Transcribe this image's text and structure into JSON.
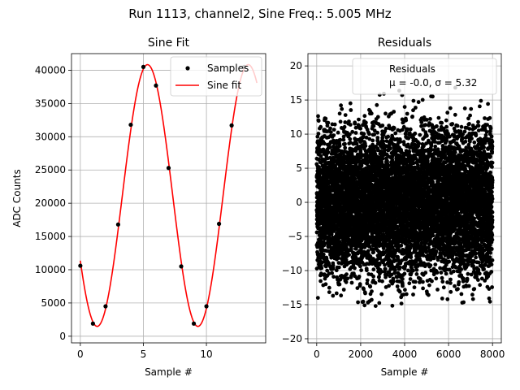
{
  "figure": {
    "title": "Run 1113, channel2, Sine Freq.: 5.005 MHz"
  },
  "chart_data": [
    {
      "type": "line",
      "title": "Sine Fit",
      "xlabel": "Sample #",
      "ylabel": "ADC Counts",
      "xlim": [
        -0.7,
        14.7
      ],
      "ylim": [
        -1000,
        42500
      ],
      "xticks": [
        0,
        5,
        10
      ],
      "yticks": [
        0,
        5000,
        10000,
        15000,
        20000,
        25000,
        30000,
        35000,
        40000
      ],
      "grid": true,
      "legend_position": "top-right",
      "series": [
        {
          "name": "Samples",
          "kind": "scatter",
          "color": "#000000",
          "x": [
            0,
            1,
            2,
            3,
            4,
            5,
            6,
            7,
            8,
            9,
            10,
            11,
            12,
            13
          ],
          "y": [
            10600,
            1900,
            4500,
            16800,
            31800,
            40500,
            37700,
            25300,
            10500,
            1900,
            4500,
            16900,
            31700,
            40500
          ]
        },
        {
          "name": "Sine fit",
          "kind": "line",
          "color": "#ff0000",
          "x_range": [
            0,
            14
          ],
          "model": {
            "offset": 21160,
            "amplitude": 19680,
            "period": 7.99,
            "peak_at": 5.33
          }
        }
      ]
    },
    {
      "type": "scatter",
      "title": "Residuals",
      "xlabel": "Sample #",
      "ylabel": "",
      "xlim": [
        -400,
        8400
      ],
      "ylim": [
        -20.6,
        21.8
      ],
      "xticks": [
        0,
        2000,
        4000,
        6000,
        8000
      ],
      "yticks": [
        -20,
        -15,
        -10,
        -5,
        0,
        5,
        10,
        15,
        20
      ],
      "grid": true,
      "legend_position": "top-right",
      "legend_title": "Residuals",
      "legend_stat": "μ = -0.0, σ = 5.32",
      "series": [
        {
          "name": "Residuals",
          "color": "#000000",
          "n_points": 8000,
          "mean": 0.0,
          "std": 5.32,
          "x_range": [
            0,
            8000
          ],
          "y_range": [
            -18.9,
            18.2
          ]
        }
      ]
    }
  ]
}
